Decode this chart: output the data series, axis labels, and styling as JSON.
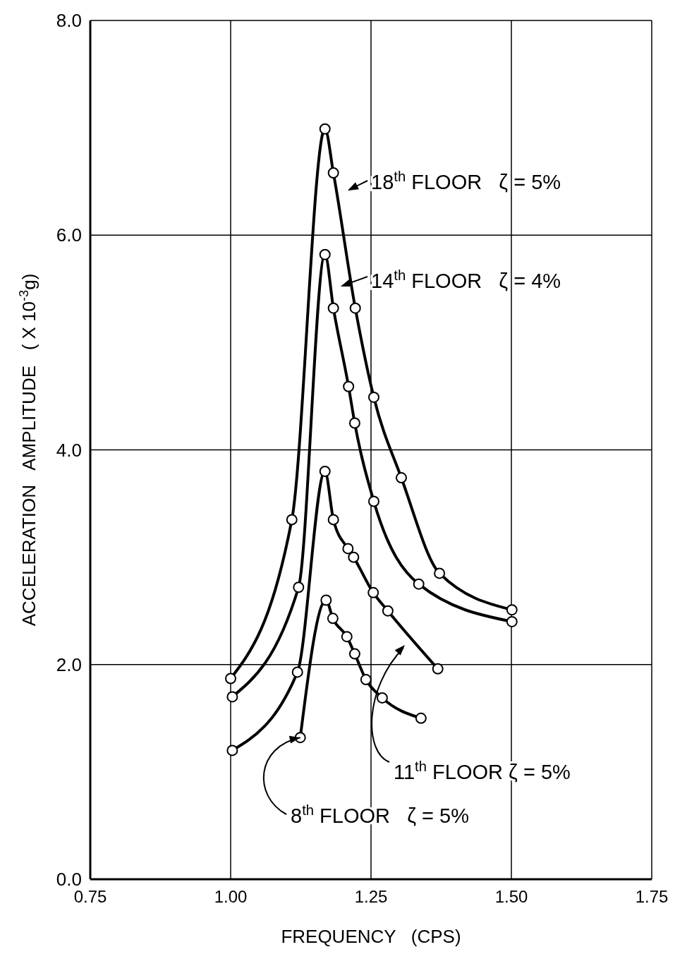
{
  "chart_data": {
    "type": "line",
    "xlabel": "FREQUENCY   (CPS)",
    "ylabel": "ACCELERATION   AMPLITUDE   ( X 10$^{-3}$g)",
    "xlim": [
      0.75,
      1.75
    ],
    "xticks": [
      {
        "value": 0.75,
        "label": "0.75"
      },
      {
        "value": 1.0,
        "label": "1.00"
      },
      {
        "value": 1.25,
        "label": "1.25"
      },
      {
        "value": 1.5,
        "label": "1.50"
      },
      {
        "value": 1.75,
        "label": "1.75"
      }
    ],
    "ylim": [
      0,
      8
    ],
    "yticks": [
      {
        "value": 0,
        "label": "0.0"
      },
      {
        "value": 2,
        "label": "2.0"
      },
      {
        "value": 4,
        "label": "4.0"
      },
      {
        "value": 6,
        "label": "6.0"
      },
      {
        "value": 8,
        "label": "8.0"
      }
    ],
    "grid": true,
    "marker": "circle",
    "line_style": "solid",
    "series": [
      {
        "color": "#000000",
        "x": [
          1.0,
          1.109,
          1.168,
          1.183,
          1.222,
          1.255,
          1.304,
          1.372,
          1.501
        ],
        "values": [
          1.87,
          3.35,
          6.99,
          6.58,
          5.32,
          4.49,
          3.74,
          2.85,
          2.51
        ]
      },
      {
        "color": "#000000",
        "x": [
          1.003,
          1.121,
          1.168,
          1.183,
          1.21,
          1.221,
          1.255,
          1.335,
          1.501
        ],
        "values": [
          1.7,
          2.72,
          5.82,
          5.32,
          4.59,
          4.25,
          3.52,
          2.75,
          2.4
        ]
      },
      {
        "color": "#000000",
        "x": [
          1.003,
          1.119,
          1.168,
          1.183,
          1.209,
          1.219,
          1.254,
          1.28,
          1.369
        ],
        "values": [
          1.2,
          1.93,
          3.8,
          3.35,
          3.08,
          3.0,
          2.67,
          2.5,
          1.96
        ]
      },
      {
        "color": "#000000",
        "x": [
          1.124,
          1.17,
          1.182,
          1.207,
          1.221,
          1.241,
          1.27,
          1.339
        ],
        "values": [
          1.32,
          2.6,
          2.43,
          2.26,
          2.1,
          1.86,
          1.69,
          1.5
        ]
      }
    ],
    "annotations": [
      "18$^{th}$ FLOOR   ζ = 5%",
      "14$^{th}$ FLOOR   ζ = 4%",
      "11$^{th}$ FLOOR ζ = 5%",
      {
        "text": "8$^{th}$ FLOOR   ζ = 5%",
        "x": 1.124,
        "y": 1.32
      }
    ]
  }
}
